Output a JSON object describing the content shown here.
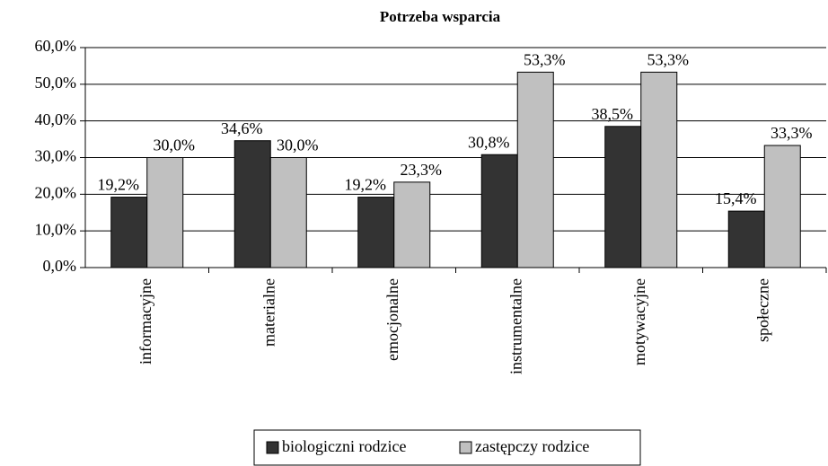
{
  "chart_data": {
    "type": "bar",
    "title": "Potrzeba wsparcia",
    "categories": [
      "informacyjne",
      "materialne",
      "emocjonalne",
      "instrumentalne",
      "motywacyjne",
      "społeczne"
    ],
    "series": [
      {
        "name": "biologiczni rodzice",
        "color": "#333333",
        "values": [
          19.2,
          34.6,
          19.2,
          30.8,
          38.5,
          15.4
        ],
        "value_labels": [
          "19,2%",
          "34,6%",
          "19,2%",
          "30,8%",
          "38,5%",
          "15,4%"
        ]
      },
      {
        "name": "zastępczy rodzice",
        "color": "#c0c0c0",
        "values": [
          30.0,
          30.0,
          23.3,
          53.3,
          53.3,
          33.3
        ],
        "value_labels": [
          "30,0%",
          "30,0%",
          "23,3%",
          "53,3%",
          "53,3%",
          "33,3%"
        ]
      }
    ],
    "ylim": [
      0,
      60
    ],
    "yticks": [
      {
        "value": 0,
        "label": "0,0%"
      },
      {
        "value": 10,
        "label": "10,0%"
      },
      {
        "value": 20,
        "label": "20,0%"
      },
      {
        "value": 30,
        "label": "30,0%"
      },
      {
        "value": 40,
        "label": "40,0%"
      },
      {
        "value": 50,
        "label": "50,0%"
      },
      {
        "value": 60,
        "label": "60,0%"
      }
    ],
    "grid": true,
    "legend": "bottom"
  }
}
